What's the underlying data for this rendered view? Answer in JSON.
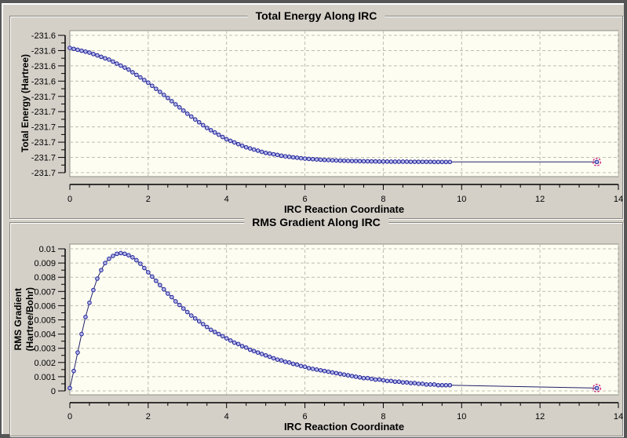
{
  "window": {
    "outer_bg": "#565656",
    "panel_bg": "#d4d0c8",
    "plot_bg": "#fdfdf2",
    "grid_color": "#bdbdb2",
    "axis_color": "#000000",
    "plot_border_color": "#8f8f85",
    "marker_stroke": "#1f1f96",
    "marker_fill": "#b3b7ea",
    "line_color": "#22226a",
    "current_point_ring": "#cf0f6e",
    "text_color": "#000000"
  },
  "chart_data": [
    {
      "type": "scatter",
      "title": "Total Energy Along IRC",
      "xlabel": "IRC Reaction Coordinate",
      "ylabel_lines": [
        "Total Energy (Hartree)"
      ],
      "legend": "none",
      "grid": "dashed",
      "marker": "circle",
      "highlight_last_point": true,
      "xlim": [
        0,
        14
      ],
      "ylim": [
        -231.711,
        -231.6076
      ],
      "x_tick_values": [
        0,
        2,
        4,
        6,
        8,
        10,
        12,
        14
      ],
      "x_tick_labels": [
        "0",
        "2",
        "4",
        "6",
        "8",
        "10",
        "12",
        "14"
      ],
      "x_minor_tick_step": 0.5,
      "y_tick_values": [
        -231.6076,
        -231.6191,
        -231.6306,
        -231.6421,
        -231.6536,
        -231.6651,
        -231.6766,
        -231.6881,
        -231.6996,
        -231.7111
      ],
      "y_tick_labels": [
        "-231.6",
        "-231.6",
        "-231.6",
        "-231.6",
        "-231.7",
        "-231.7",
        "-231.7",
        "-231.7",
        "-231.7",
        "-231.7"
      ],
      "x": [
        0,
        0.1,
        0.2,
        0.3,
        0.4,
        0.5,
        0.6,
        0.7,
        0.8,
        0.9,
        1,
        1.1,
        1.2,
        1.3,
        1.4,
        1.5,
        1.6,
        1.7,
        1.8,
        1.9,
        2,
        2.1,
        2.2,
        2.3,
        2.4,
        2.5,
        2.6,
        2.7,
        2.8,
        2.9,
        3,
        3.1,
        3.2,
        3.3,
        3.4,
        3.5,
        3.6,
        3.7,
        3.8,
        3.9,
        4,
        4.1,
        4.2,
        4.3,
        4.4,
        4.5,
        4.6,
        4.7,
        4.8,
        4.9,
        5,
        5.1,
        5.2,
        5.3,
        5.4,
        5.5,
        5.6,
        5.7,
        5.8,
        5.9,
        6,
        6.1,
        6.2,
        6.3,
        6.4,
        6.5,
        6.6,
        6.7,
        6.8,
        6.9,
        7,
        7.1,
        7.2,
        7.3,
        7.4,
        7.5,
        7.6,
        7.7,
        7.8,
        7.9,
        8,
        8.1,
        8.2,
        8.3,
        8.4,
        8.5,
        8.6,
        8.7,
        8.8,
        8.9,
        9,
        9.1,
        9.2,
        9.3,
        9.4,
        9.5,
        9.6,
        9.7,
        13.45
      ],
      "y": [
        -231.6171,
        -231.6178,
        -231.6185,
        -231.6192,
        -231.6199,
        -231.6206,
        -231.6217,
        -231.6227,
        -231.6238,
        -231.6249,
        -231.6259,
        -231.6274,
        -231.6289,
        -231.6304,
        -231.6319,
        -231.6334,
        -231.6354,
        -231.6374,
        -231.6393,
        -231.6413,
        -231.6433,
        -231.6456,
        -231.6479,
        -231.6502,
        -231.6525,
        -231.6548,
        -231.6572,
        -231.6596,
        -231.6619,
        -231.6643,
        -231.6667,
        -231.6688,
        -231.671,
        -231.6731,
        -231.6753,
        -231.6774,
        -231.6791,
        -231.6808,
        -231.6825,
        -231.6842,
        -231.6859,
        -231.6871,
        -231.6883,
        -231.6896,
        -231.6908,
        -231.692,
        -231.6928,
        -231.6937,
        -231.6945,
        -231.6954,
        -231.6962,
        -231.6967,
        -231.6972,
        -231.6977,
        -231.6983,
        -231.6988,
        -231.6991,
        -231.6995,
        -231.6998,
        -231.7002,
        -231.7005,
        -231.7007,
        -231.7009,
        -231.7011,
        -231.7013,
        -231.7015,
        -231.7016,
        -231.7017,
        -231.7019,
        -231.702,
        -231.7021,
        -231.7022,
        -231.7023,
        -231.7023,
        -231.7024,
        -231.7025,
        -231.7025,
        -231.7026,
        -231.7026,
        -231.7027,
        -231.7027,
        -231.7027,
        -231.7028,
        -231.7028,
        -231.7028,
        -231.7028,
        -231.7028,
        -231.7029,
        -231.7029,
        -231.7029,
        -231.7029,
        -231.7029,
        -231.7029,
        -231.703,
        -231.703,
        -231.703,
        -231.703,
        -231.703,
        -231.703
      ]
    },
    {
      "type": "scatter",
      "title": "RMS Gradient Along IRC",
      "xlabel": "IRC Reaction Coordinate",
      "ylabel_lines": [
        "RMS Gradient",
        "(Hartree/Bohr)"
      ],
      "legend": "none",
      "grid": "dashed",
      "marker": "circle",
      "highlight_last_point": true,
      "xlim": [
        0,
        14
      ],
      "ylim": [
        0,
        0.01
      ],
      "x_tick_values": [
        0,
        2,
        4,
        6,
        8,
        10,
        12,
        14
      ],
      "x_tick_labels": [
        "0",
        "2",
        "4",
        "6",
        "8",
        "10",
        "12",
        "14"
      ],
      "x_minor_tick_step": 0.5,
      "y_tick_values": [
        0.01,
        0.009,
        0.008,
        0.007,
        0.006,
        0.005,
        0.004,
        0.003,
        0.002,
        0.001,
        0
      ],
      "y_tick_labels": [
        "0.01",
        "0.009",
        "0.008",
        "0.007",
        "0.006",
        "0.005",
        "0.004",
        "0.003",
        "0.002",
        "0.001",
        "0"
      ],
      "x": [
        0,
        0.1,
        0.2,
        0.3,
        0.4,
        0.5,
        0.6,
        0.7,
        0.8,
        0.9,
        1,
        1.1,
        1.2,
        1.3,
        1.4,
        1.5,
        1.6,
        1.7,
        1.8,
        1.9,
        2,
        2.1,
        2.2,
        2.3,
        2.4,
        2.5,
        2.6,
        2.7,
        2.8,
        2.9,
        3,
        3.1,
        3.2,
        3.3,
        3.4,
        3.5,
        3.6,
        3.7,
        3.8,
        3.9,
        4,
        4.1,
        4.2,
        4.3,
        4.4,
        4.5,
        4.6,
        4.7,
        4.8,
        4.9,
        5,
        5.1,
        5.2,
        5.3,
        5.4,
        5.5,
        5.6,
        5.7,
        5.8,
        5.9,
        6,
        6.1,
        6.2,
        6.3,
        6.4,
        6.5,
        6.6,
        6.7,
        6.8,
        6.9,
        7,
        7.1,
        7.2,
        7.3,
        7.4,
        7.5,
        7.6,
        7.7,
        7.8,
        7.9,
        8,
        8.1,
        8.2,
        8.3,
        8.4,
        8.5,
        8.6,
        8.7,
        8.8,
        8.9,
        9,
        9.1,
        9.2,
        9.3,
        9.4,
        9.5,
        9.6,
        9.7,
        13.45
      ],
      "y": [
        0.0002,
        0.0014,
        0.0027,
        0.004,
        0.0052,
        0.0062,
        0.0071,
        0.0079,
        0.0085,
        0.009,
        0.0093,
        0.0095,
        0.00965,
        0.0097,
        0.00965,
        0.00955,
        0.0094,
        0.0092,
        0.00895,
        0.00865,
        0.00835,
        0.00805,
        0.00775,
        0.00745,
        0.00715,
        0.00685,
        0.0066,
        0.0063,
        0.00605,
        0.0058,
        0.00555,
        0.0053,
        0.0051,
        0.0049,
        0.0047,
        0.0045,
        0.0043,
        0.00415,
        0.004,
        0.00385,
        0.0037,
        0.00355,
        0.0034,
        0.0033,
        0.00315,
        0.00305,
        0.0029,
        0.0028,
        0.0027,
        0.0026,
        0.0025,
        0.0024,
        0.0023,
        0.0022,
        0.00215,
        0.00205,
        0.002,
        0.0019,
        0.00185,
        0.00175,
        0.0017,
        0.0016,
        0.00155,
        0.0015,
        0.00145,
        0.0014,
        0.00135,
        0.0013,
        0.00125,
        0.0012,
        0.00115,
        0.0011,
        0.00105,
        0.001,
        0.00095,
        0.0009,
        0.0009,
        0.00085,
        0.0008,
        0.0008,
        0.00075,
        0.0007,
        0.0007,
        0.00065,
        0.00065,
        0.0006,
        0.0006,
        0.00055,
        0.00055,
        0.0005,
        0.0005,
        0.00045,
        0.00045,
        0.00045,
        0.0004,
        0.0004,
        0.0004,
        0.0004,
        0.0002
      ]
    }
  ]
}
